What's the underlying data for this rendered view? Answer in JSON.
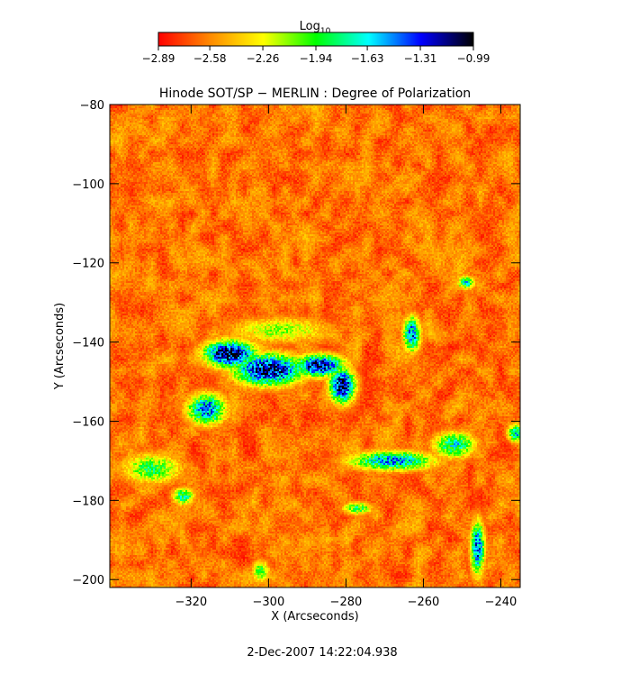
{
  "chart_data": {
    "type": "heatmap",
    "title": "Hinode SOT/SP − MERLIN : Degree of Polarization",
    "xlabel": "X (Arcseconds)",
    "ylabel": "Y (Arcseconds)",
    "xlim": [
      -341,
      -235
    ],
    "ylim": [
      -202,
      -80
    ],
    "xticks": [
      -320,
      -300,
      -280,
      -260,
      -240
    ],
    "xtick_labels": [
      "−320",
      "−300",
      "−280",
      "−260",
      "−240"
    ],
    "yticks": [
      -80,
      -100,
      -120,
      -140,
      -160,
      -180,
      -200
    ],
    "ytick_labels": [
      "−80",
      "−100",
      "−120",
      "−140",
      "−160",
      "−180",
      "−200"
    ],
    "colorbar": {
      "title_main": "Log",
      "title_sub": "10",
      "range": [
        -2.89,
        -0.99
      ],
      "ticks": [
        -2.89,
        -2.58,
        -2.26,
        -1.94,
        -1.63,
        -1.31,
        -0.99
      ],
      "tick_labels": [
        "−2.89",
        "−2.58",
        "−2.26",
        "−1.94",
        "−1.63",
        "−1.31",
        "−0.99"
      ],
      "colors": [
        "#ff0000",
        "#ff8c00",
        "#ffff00",
        "#00ff00",
        "#00ffff",
        "#0000ff",
        "#000000"
      ]
    },
    "features": [
      {
        "x": -310,
        "y": -143,
        "sx": 6,
        "sy": 3,
        "value": -0.99
      },
      {
        "x": -300,
        "y": -147,
        "sx": 8,
        "sy": 3.5,
        "value": -1.05
      },
      {
        "x": -316,
        "y": -157,
        "sx": 4.5,
        "sy": 3.5,
        "value": -1.4
      },
      {
        "x": -287,
        "y": -146,
        "sx": 6,
        "sy": 2.5,
        "value": -1.15
      },
      {
        "x": -281,
        "y": -151,
        "sx": 3,
        "sy": 4,
        "value": -1.1
      },
      {
        "x": -263,
        "y": -138,
        "sx": 2,
        "sy": 4,
        "value": -1.4
      },
      {
        "x": -268,
        "y": -170,
        "sx": 10,
        "sy": 2.2,
        "value": -1.5
      },
      {
        "x": -252,
        "y": -166,
        "sx": 5,
        "sy": 3,
        "value": -1.7
      },
      {
        "x": -246,
        "y": -192,
        "sx": 1.6,
        "sy": 6,
        "value": -1.35
      },
      {
        "x": -249,
        "y": -125,
        "sx": 2,
        "sy": 1.5,
        "value": -1.7
      },
      {
        "x": -330,
        "y": -172,
        "sx": 7,
        "sy": 3.5,
        "value": -1.9
      },
      {
        "x": -322,
        "y": -179,
        "sx": 2.5,
        "sy": 2,
        "value": -1.75
      },
      {
        "x": -302,
        "y": -198,
        "sx": 2,
        "sy": 2.5,
        "value": -1.9
      },
      {
        "x": -277,
        "y": -182,
        "sx": 3.5,
        "sy": 1.5,
        "value": -1.9
      },
      {
        "x": -297,
        "y": -137,
        "sx": 12,
        "sy": 3,
        "value": -2.1
      },
      {
        "x": -236,
        "y": -163,
        "sx": 2,
        "sy": 2,
        "value": -1.6
      }
    ]
  },
  "footer": {
    "timestamp": "2-Dec-2007 14:22:04.938"
  }
}
